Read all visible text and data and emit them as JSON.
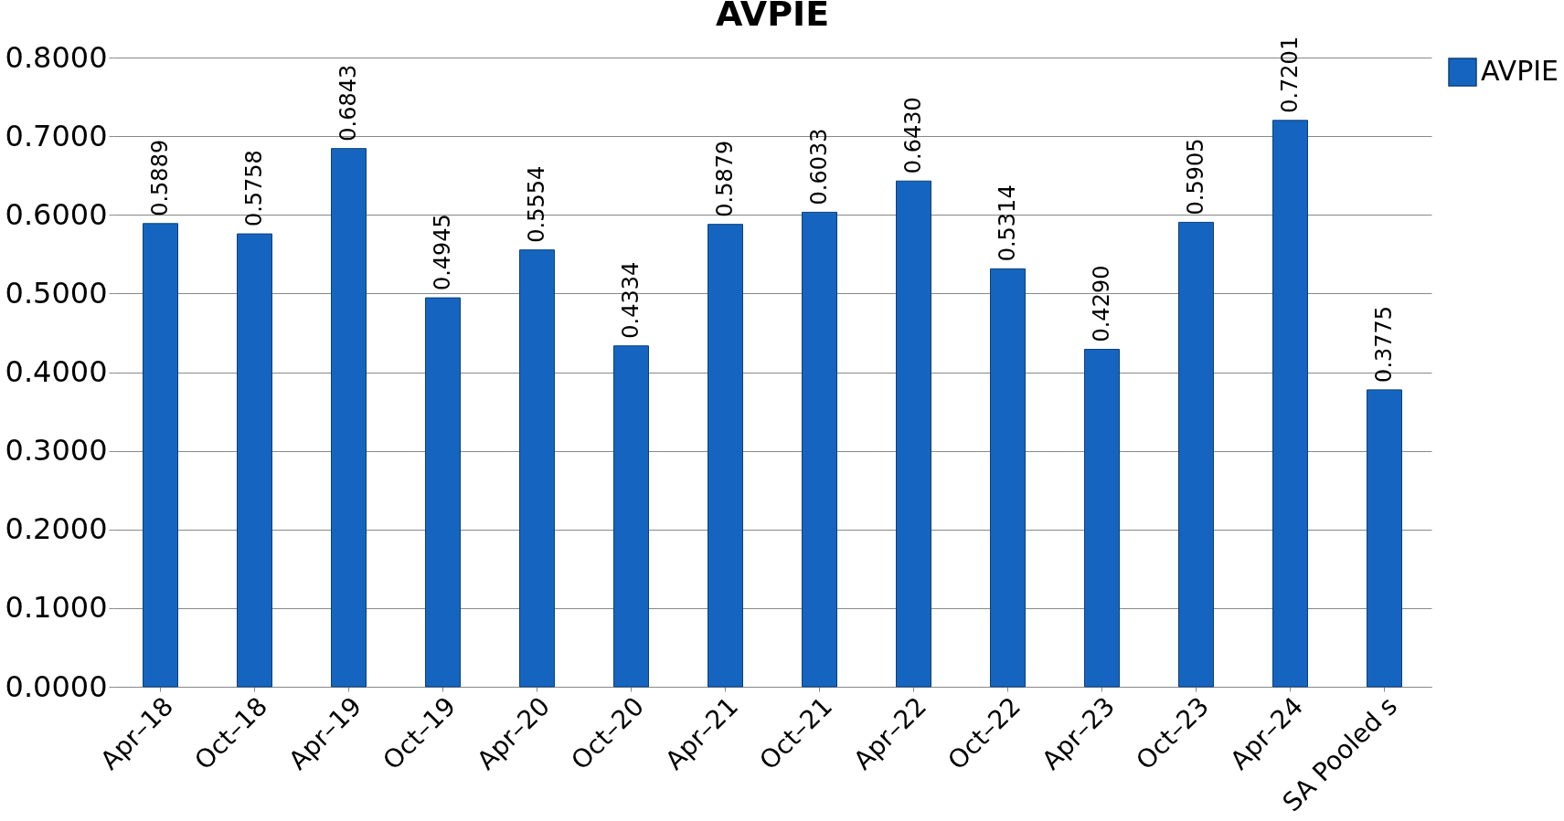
{
  "chart_data": {
    "type": "bar",
    "title": "AVPIE",
    "categories": [
      "Apr–18",
      "Oct–18",
      "Apr–19",
      "Oct–19",
      "Apr–20",
      "Oct–20",
      "Apr–21",
      "Oct–21",
      "Apr–22",
      "Oct–22",
      "Apr–23",
      "Oct–23",
      "Apr–24",
      "SA Pooled s"
    ],
    "series": [
      {
        "name": "AVPIE",
        "color": "#1565c0",
        "values": [
          0.5889,
          0.5758,
          0.6843,
          0.4945,
          0.5554,
          0.4334,
          0.5879,
          0.6033,
          0.643,
          0.5314,
          0.429,
          0.5905,
          0.7201,
          0.3775
        ]
      }
    ],
    "value_labels": [
      "0.5889",
      "0.5758",
      "0.6843",
      "0.4945",
      "0.5554",
      "0.4334",
      "0.5879",
      "0.6033",
      "0.6430",
      "0.5314",
      "0.4290",
      "0.5905",
      "0.7201",
      "0.3775"
    ],
    "ylim": [
      0,
      0.8
    ],
    "yticks": [
      {
        "value": 0,
        "label": "0.0000"
      },
      {
        "value": 0.1,
        "label": "0.1000"
      },
      {
        "value": 0.2,
        "label": "0.2000"
      },
      {
        "value": 0.3,
        "label": "0.3000"
      },
      {
        "value": 0.4,
        "label": "0.4000"
      },
      {
        "value": 0.5,
        "label": "0.5000"
      },
      {
        "value": 0.6,
        "label": "0.6000"
      },
      {
        "value": 0.7,
        "label": "0.7000"
      },
      {
        "value": 0.8,
        "label": "0.8000"
      }
    ],
    "grid": "y",
    "legend": "right"
  }
}
